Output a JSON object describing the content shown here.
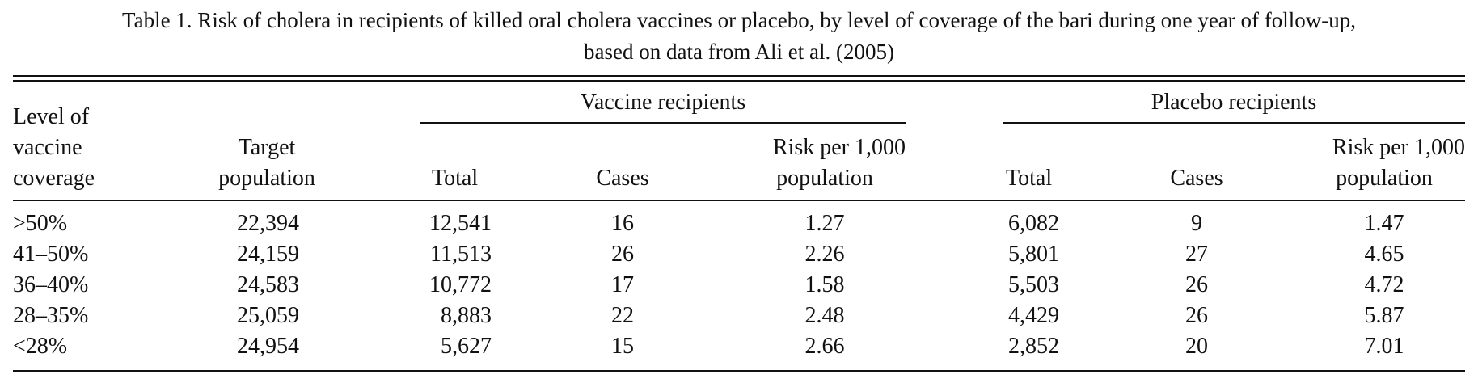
{
  "caption": {
    "line1": "Table 1.  Risk of cholera in recipients of killed oral cholera vaccines or placebo, by level of coverage of the bari during one year of follow-up,",
    "line2": "based on data from Ali et al. (2005)"
  },
  "header": {
    "level_line1": "Level of",
    "level_line2": "vaccine",
    "level_line3": "coverage",
    "target_line1": "Target",
    "target_line2": "population",
    "vaccine_group": "Vaccine recipients",
    "placebo_group": "Placebo recipients",
    "total": "Total",
    "cases": "Cases",
    "risk_line1": "Risk per 1,000",
    "risk_line2": "population"
  },
  "rows": [
    {
      "level": ">50%",
      "target": "22,394",
      "v_total": "12,541",
      "v_cases": "16",
      "v_risk": "1.27",
      "p_total": "6,082",
      "p_cases": "9",
      "p_risk": "1.47"
    },
    {
      "level": "41–50%",
      "target": "24,159",
      "v_total": "11,513",
      "v_cases": "26",
      "v_risk": "2.26",
      "p_total": "5,801",
      "p_cases": "27",
      "p_risk": "4.65"
    },
    {
      "level": "36–40%",
      "target": "24,583",
      "v_total": "10,772",
      "v_cases": "17",
      "v_risk": "1.58",
      "p_total": "5,503",
      "p_cases": "26",
      "p_risk": "4.72"
    },
    {
      "level": "28–35%",
      "target": "25,059",
      "v_total": "8,883",
      "v_cases": "22",
      "v_risk": "2.48",
      "p_total": "4,429",
      "p_cases": "26",
      "p_risk": "5.87"
    },
    {
      "level": "<28%",
      "target": "24,954",
      "v_total": "5,627",
      "v_cases": "15",
      "v_risk": "2.66",
      "p_total": "2,852",
      "p_cases": "20",
      "p_risk": "7.01"
    }
  ]
}
